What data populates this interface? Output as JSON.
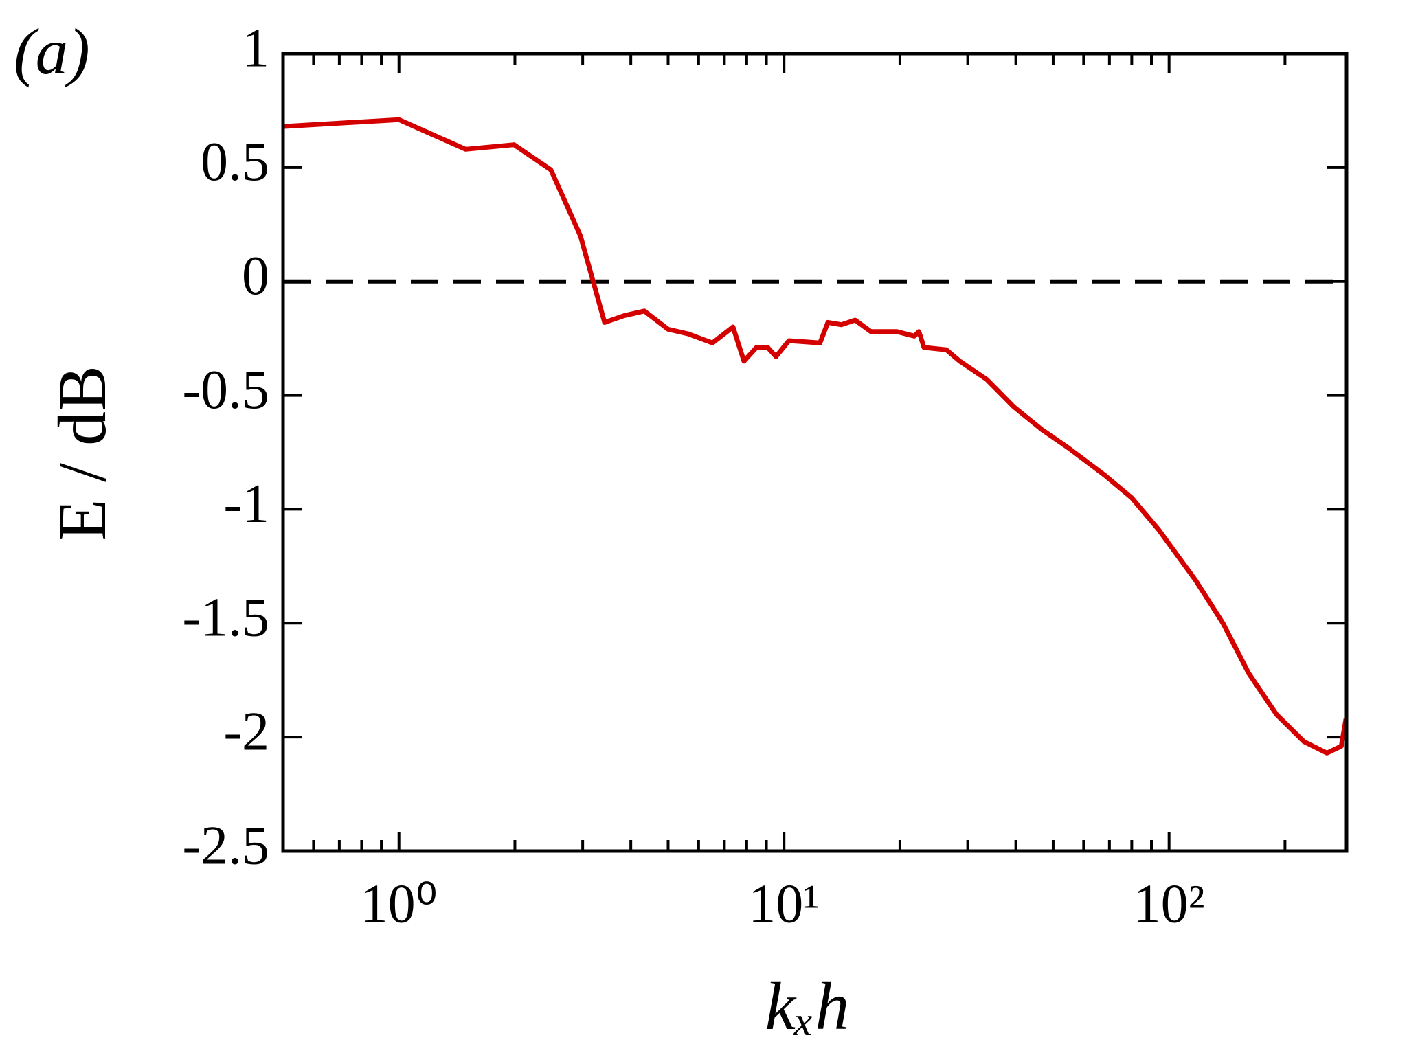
{
  "chart_data": {
    "type": "line",
    "panel_label": "(a)",
    "xlabel": "kₓh",
    "ylabel": "E / dB",
    "xscale": "log",
    "x": [
      0.5,
      1,
      1.49,
      1.99,
      2.48,
      2.96,
      3.42,
      3.85,
      4.34,
      5.0,
      5.63,
      6.52,
      7.37,
      7.87,
      8.48,
      9.07,
      9.53,
      10.3,
      12.4,
      13.0,
      14.1,
      15.3,
      16.8,
      19.6,
      21.8,
      22.4,
      23.1,
      26.4,
      28.6,
      33.6,
      39.5,
      46.7,
      54.7,
      68.0,
      80.0,
      94.0,
      117,
      138,
      161,
      190,
      224,
      257,
      280,
      288
    ],
    "series": [
      {
        "color": "#d40000",
        "values": [
          0.68,
          0.71,
          0.58,
          0.6,
          0.49,
          0.2,
          -0.18,
          -0.15,
          -0.13,
          -0.21,
          -0.23,
          -0.27,
          -0.2,
          -0.35,
          -0.29,
          -0.29,
          -0.33,
          -0.26,
          -0.27,
          -0.18,
          -0.19,
          -0.17,
          -0.22,
          -0.22,
          -0.24,
          -0.22,
          -0.29,
          -0.3,
          -0.35,
          -0.43,
          -0.55,
          -0.65,
          -0.73,
          -0.85,
          -0.95,
          -1.09,
          -1.31,
          -1.5,
          -1.72,
          -1.9,
          -2.02,
          -2.07,
          -2.04,
          -1.92
        ]
      }
    ],
    "hline": 0,
    "xlim": [
      0.5,
      289
    ],
    "ylim": [
      -2.5,
      1
    ],
    "xticks": [
      {
        "value": 1,
        "label": "10⁰"
      },
      {
        "value": 10,
        "label": "10¹"
      },
      {
        "value": 100,
        "label": "10²"
      }
    ],
    "xminor_ticks": [
      0.6,
      0.7,
      0.8,
      0.9,
      2,
      3,
      4,
      5,
      6,
      7,
      8,
      9,
      20,
      30,
      40,
      50,
      60,
      70,
      80,
      90,
      200
    ],
    "yticks": [
      1,
      0.5,
      0,
      -0.5,
      -1,
      -1.5,
      -2,
      -2.5
    ]
  }
}
